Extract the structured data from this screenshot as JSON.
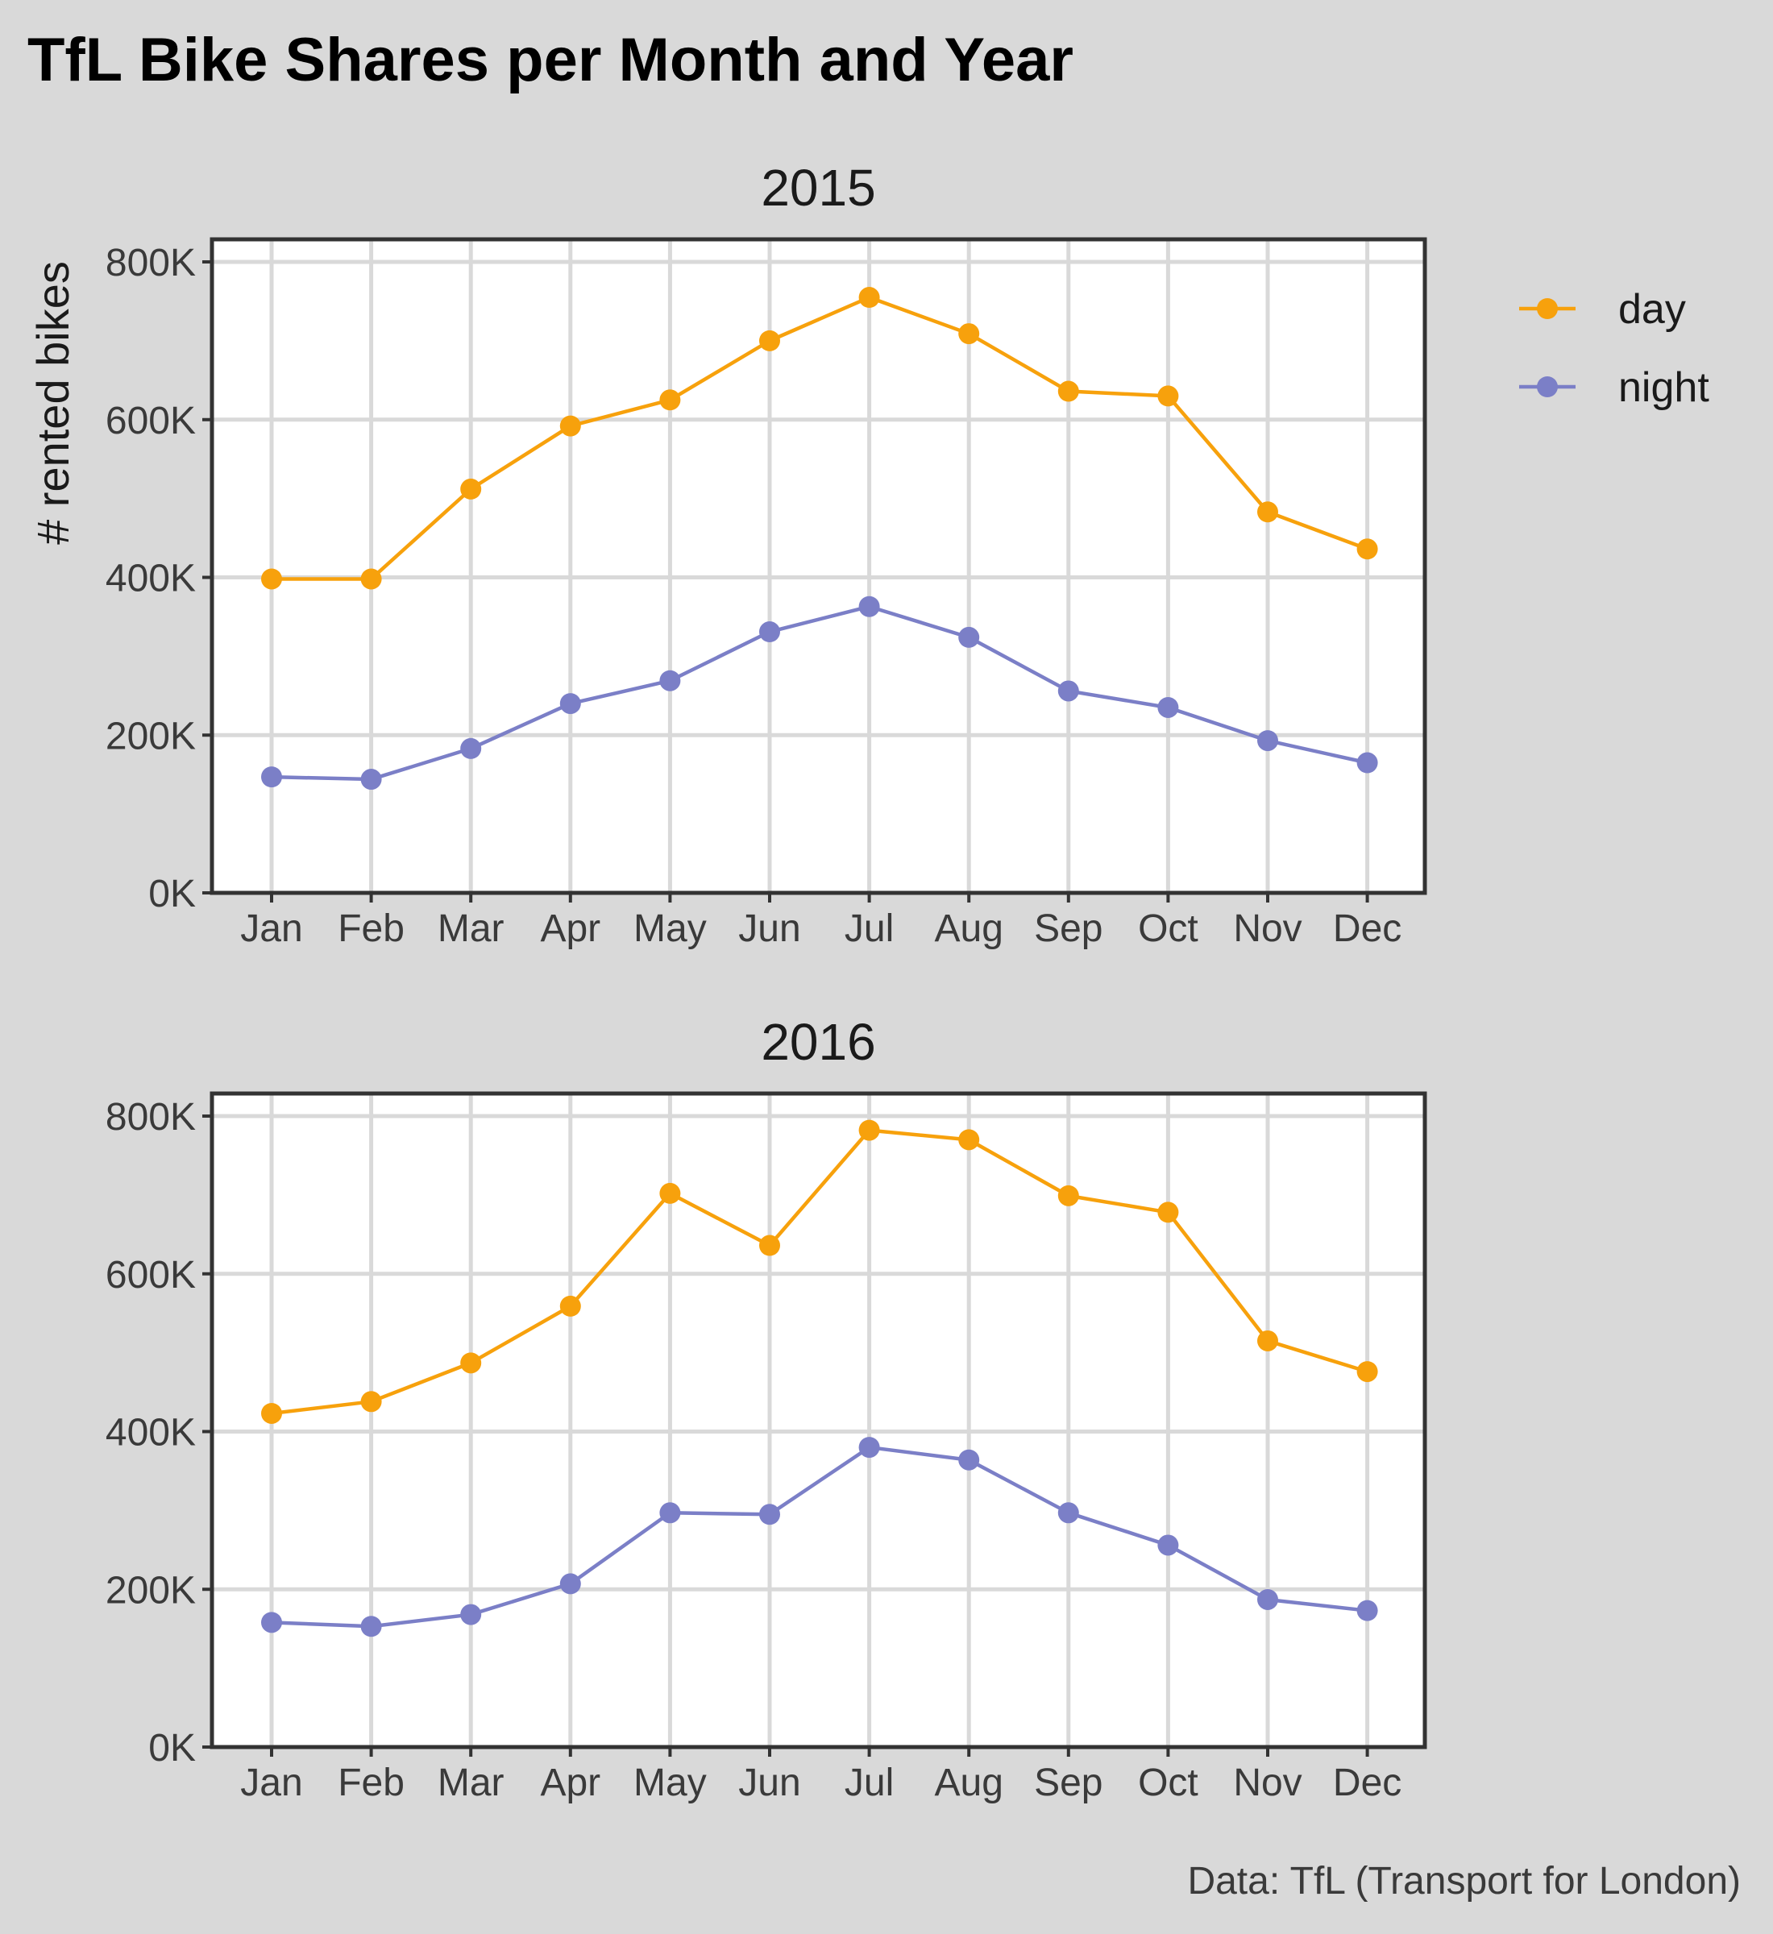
{
  "title": "TfL Bike Shares per Month and Year",
  "caption": "Data: TfL (Transport for London)",
  "colors": {
    "day": "#f7a10c",
    "night": "#7b7fc7",
    "panel": "#ffffff",
    "grid": "#d9d9d9",
    "border": "#333333",
    "background": "#d9d9d9"
  },
  "chart_data": {
    "type": "line",
    "ylabel": "# rented bikes",
    "ylim": [
      0,
      800000
    ],
    "yticks": [
      0,
      200000,
      400000,
      600000,
      800000
    ],
    "ytick_labels": [
      "0K",
      "200K",
      "400K",
      "600K",
      "800K"
    ],
    "categories": [
      "Jan",
      "Feb",
      "Mar",
      "Apr",
      "May",
      "Jun",
      "Jul",
      "Aug",
      "Sep",
      "Oct",
      "Nov",
      "Dec"
    ],
    "legend": {
      "position": "right",
      "entries": [
        "day",
        "night"
      ]
    },
    "grid": true,
    "panels": [
      {
        "label": "2015",
        "series": [
          {
            "name": "day",
            "values": [
              398000,
              398000,
              512000,
              592000,
              625000,
              700000,
              755000,
              709000,
              636000,
              630000,
              483000,
              436000
            ]
          },
          {
            "name": "night",
            "values": [
              147000,
              144000,
              183000,
              240000,
              269000,
              331000,
              363000,
              324000,
              256000,
              235000,
              193000,
              165000
            ]
          }
        ]
      },
      {
        "label": "2016",
        "series": [
          {
            "name": "day",
            "values": [
              423000,
              438000,
              487000,
              559000,
              702000,
              636000,
              782000,
              770000,
              699000,
              678000,
              515000,
              476000
            ]
          },
          {
            "name": "night",
            "values": [
              158000,
              153000,
              168000,
              207000,
              297000,
              295000,
              380000,
              364000,
              297000,
              256000,
              187000,
              173000
            ]
          }
        ]
      }
    ]
  }
}
